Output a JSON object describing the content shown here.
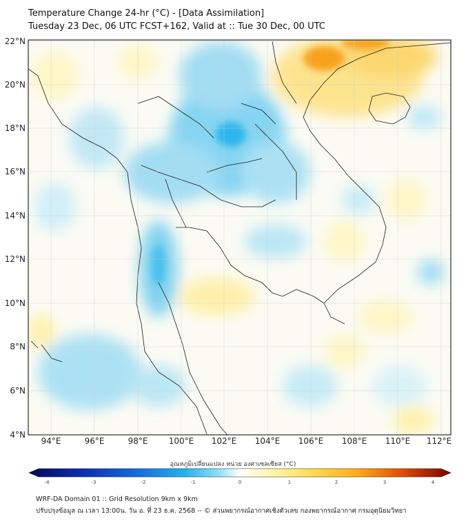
{
  "title": {
    "line1": "Temperature Change 24-hr (°C) - [Data Assimilation]",
    "line2": "Tuesday 23 Dec, 06 UTC FCST+162, Valid at :: Tue 30 Dec, 00 UTC"
  },
  "axes": {
    "lat_labels": [
      "22°N",
      "20°N",
      "18°N",
      "16°N",
      "14°N",
      "12°N",
      "10°N",
      "8°N",
      "6°N",
      "4°N"
    ],
    "lon_labels": [
      "94°E",
      "96°E",
      "98°E",
      "100°E",
      "102°E",
      "104°E",
      "106°E",
      "108°E",
      "110°E",
      "112°E"
    ]
  },
  "colorbar": {
    "label": "อุณหภูมิเปลี่ยนแปลง หน่วย องศาเซลเซียส (°C)",
    "ticks": [
      "-4",
      "-3",
      "-2",
      "-1",
      "0",
      "1",
      "2",
      "3",
      "4"
    ],
    "colors": [
      "#08085a",
      "#0a2ab0",
      "#1568e0",
      "#22b4ee",
      "#8ee0f6",
      "#ffffff",
      "#fff6a8",
      "#ffd84a",
      "#ffaa18",
      "#e65000",
      "#7a0000"
    ]
  },
  "footer": {
    "line1": "WRF-DA Domain 01 :: Grid Resolution 9km x 9km",
    "line2": "ปรับปรุงข้อมูล ณ เวลา 13:00น. วัน อ. ที่ 23 ธ.ค. 2568 -- © ส่วนพยากรณ์อากาศเชิงตัวเลข กองพยากรณ์อากาศ กรมอุตุนิยมวิทยา"
  }
}
